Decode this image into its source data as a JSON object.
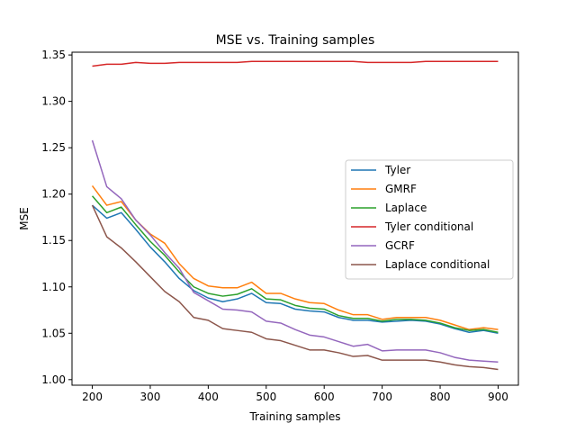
{
  "chart_data": {
    "type": "line",
    "title": "MSE vs. Training samples",
    "xlabel": "Training samples",
    "ylabel": "MSE",
    "xlim": [
      165,
      935
    ],
    "ylim": [
      0.994,
      1.353
    ],
    "xticks": [
      200,
      300,
      400,
      500,
      600,
      700,
      800,
      900
    ],
    "yticks": [
      1.0,
      1.05,
      1.1,
      1.15,
      1.2,
      1.25,
      1.3,
      1.35
    ],
    "ytick_labels": [
      "1.00",
      "1.05",
      "1.10",
      "1.15",
      "1.20",
      "1.25",
      "1.30",
      "1.35"
    ],
    "grid": false,
    "legend_position": "center-right",
    "x": [
      200,
      225,
      250,
      275,
      300,
      325,
      350,
      375,
      400,
      425,
      450,
      475,
      500,
      525,
      550,
      575,
      600,
      625,
      650,
      675,
      700,
      725,
      750,
      775,
      800,
      825,
      850,
      875,
      900
    ],
    "series": [
      {
        "name": "Tyler",
        "color": "#1f77b4",
        "values": [
          1.188,
          1.174,
          1.18,
          1.162,
          1.143,
          1.127,
          1.109,
          1.096,
          1.088,
          1.084,
          1.087,
          1.093,
          1.083,
          1.082,
          1.076,
          1.074,
          1.073,
          1.067,
          1.064,
          1.064,
          1.062,
          1.063,
          1.064,
          1.063,
          1.06,
          1.055,
          1.051,
          1.053,
          1.05
        ]
      },
      {
        "name": "GMRF",
        "color": "#ff7f0e",
        "values": [
          1.209,
          1.188,
          1.192,
          1.172,
          1.157,
          1.147,
          1.125,
          1.109,
          1.101,
          1.099,
          1.099,
          1.105,
          1.093,
          1.093,
          1.087,
          1.083,
          1.082,
          1.075,
          1.07,
          1.07,
          1.065,
          1.067,
          1.067,
          1.067,
          1.064,
          1.059,
          1.054,
          1.056,
          1.054
        ]
      },
      {
        "name": "Laplace",
        "color": "#2ca02c",
        "values": [
          1.198,
          1.18,
          1.186,
          1.167,
          1.149,
          1.134,
          1.116,
          1.1,
          1.093,
          1.09,
          1.092,
          1.098,
          1.087,
          1.086,
          1.08,
          1.077,
          1.076,
          1.069,
          1.066,
          1.066,
          1.063,
          1.065,
          1.065,
          1.064,
          1.061,
          1.056,
          1.053,
          1.054,
          1.051
        ]
      },
      {
        "name": "Tyler conditional",
        "color": "#d62728",
        "values": [
          1.338,
          1.34,
          1.34,
          1.342,
          1.341,
          1.341,
          1.342,
          1.342,
          1.342,
          1.342,
          1.342,
          1.343,
          1.343,
          1.343,
          1.343,
          1.343,
          1.343,
          1.343,
          1.343,
          1.342,
          1.342,
          1.342,
          1.342,
          1.343,
          1.343,
          1.343,
          1.343,
          1.343,
          1.343
        ]
      },
      {
        "name": "GCRF",
        "color": "#9467bd",
        "values": [
          1.258,
          1.208,
          1.195,
          1.172,
          1.156,
          1.137,
          1.12,
          1.094,
          1.085,
          1.076,
          1.075,
          1.073,
          1.063,
          1.061,
          1.054,
          1.048,
          1.046,
          1.041,
          1.036,
          1.038,
          1.031,
          1.032,
          1.032,
          1.032,
          1.029,
          1.024,
          1.021,
          1.02,
          1.019
        ]
      },
      {
        "name": "Laplace conditional",
        "color": "#8c564b",
        "values": [
          1.188,
          1.154,
          1.142,
          1.127,
          1.111,
          1.095,
          1.084,
          1.067,
          1.064,
          1.055,
          1.053,
          1.051,
          1.044,
          1.042,
          1.037,
          1.032,
          1.032,
          1.029,
          1.025,
          1.026,
          1.021,
          1.021,
          1.021,
          1.021,
          1.019,
          1.016,
          1.014,
          1.013,
          1.011
        ]
      }
    ]
  }
}
